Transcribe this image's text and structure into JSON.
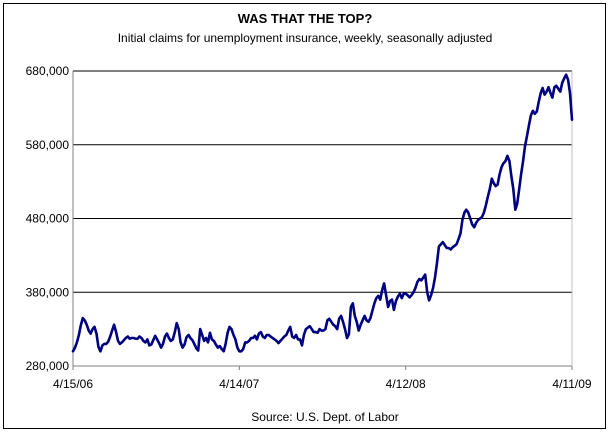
{
  "chart_data": {
    "type": "line",
    "title": "WAS THAT THE TOP?",
    "subtitle": "Initial claims for unemployment insurance, weekly, seasonally adjusted",
    "source": "Source: U.S. Dept. of Labor",
    "xlabel": "",
    "ylabel": "",
    "ylim": [
      280000,
      680000
    ],
    "y_ticks": [
      280000,
      380000,
      480000,
      580000,
      680000
    ],
    "y_tick_labels": [
      "280,000",
      "380,000",
      "480,000",
      "580,000",
      "680,000"
    ],
    "x_tick_labels": [
      "4/15/06",
      "4/14/07",
      "4/12/08",
      "4/11/09"
    ],
    "grid": "horizontal",
    "series": [
      {
        "color": "#000080",
        "values": [
          300000,
          305000,
          312000,
          322000,
          335000,
          345000,
          342000,
          336000,
          328000,
          324000,
          330000,
          333000,
          324000,
          306000,
          300000,
          308000,
          310000,
          310000,
          313000,
          320000,
          328000,
          336000,
          326000,
          314000,
          310000,
          312000,
          315000,
          318000,
          320000,
          317000,
          318000,
          318000,
          317000,
          317000,
          320000,
          318000,
          314000,
          312000,
          316000,
          308000,
          309000,
          315000,
          321000,
          316000,
          311000,
          305000,
          310000,
          320000,
          324000,
          318000,
          314000,
          316000,
          326000,
          338000,
          330000,
          312000,
          305000,
          309000,
          319000,
          322000,
          318000,
          315000,
          310000,
          304000,
          301000,
          330000,
          322000,
          314000,
          318000,
          312000,
          325000,
          316000,
          314000,
          309000,
          305000,
          307000,
          303000,
          300000,
          310000,
          325000,
          333000,
          330000,
          322000,
          316000,
          305000,
          300000,
          300000,
          303000,
          312000,
          312000,
          314000,
          318000,
          318000,
          321000,
          316000,
          324000,
          326000,
          320000,
          318000,
          322000,
          322000,
          320000,
          318000,
          316000,
          314000,
          311000,
          314000,
          317000,
          320000,
          322000,
          328000,
          333000,
          320000,
          318000,
          322000,
          316000,
          316000,
          308000,
          322000,
          330000,
          332000,
          334000,
          330000,
          326000,
          326000,
          325000,
          330000,
          328000,
          328000,
          330000,
          342000,
          344000,
          340000,
          336000,
          334000,
          330000,
          344000,
          348000,
          340000,
          330000,
          318000,
          323000,
          360000,
          365000,
          348000,
          340000,
          328000,
          336000,
          342000,
          348000,
          342000,
          340000,
          345000,
          355000,
          365000,
          372000,
          375000,
          370000,
          383000,
          392000,
          376000,
          360000,
          368000,
          370000,
          356000,
          368000,
          374000,
          378000,
          372000,
          378000,
          378000,
          376000,
          373000,
          376000,
          380000,
          386000,
          394000,
          398000,
          396000,
          400000,
          404000,
          380000,
          369000,
          376000,
          386000,
          400000,
          420000,
          442000,
          445000,
          448000,
          444000,
          440000,
          440000,
          438000,
          441000,
          443000,
          445000,
          452000,
          460000,
          478000,
          488000,
          492000,
          488000,
          480000,
          472000,
          468000,
          474000,
          478000,
          480000,
          482000,
          488000,
          498000,
          510000,
          520000,
          534000,
          528000,
          524000,
          526000,
          540000,
          550000,
          555000,
          558000,
          565000,
          558000,
          538000,
          520000,
          492000,
          500000,
          520000,
          540000,
          558000,
          578000,
          592000,
          606000,
          620000,
          626000,
          622000,
          625000,
          638000,
          650000,
          657000,
          648000,
          652000,
          658000,
          650000,
          644000,
          658000,
          660000,
          656000,
          652000,
          664000,
          670000,
          675000,
          668000,
          650000,
          614000
        ]
      }
    ]
  }
}
